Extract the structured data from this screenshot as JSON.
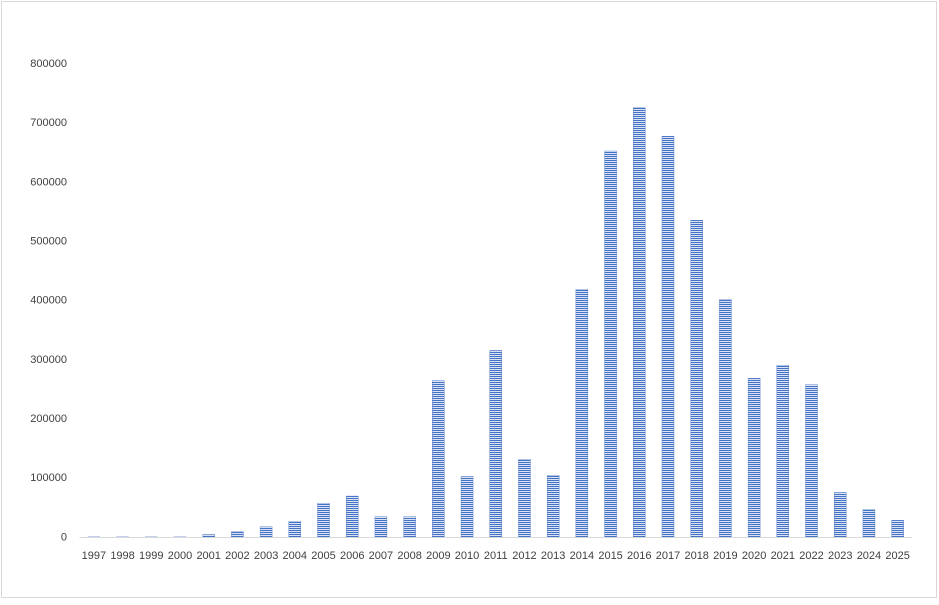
{
  "chart_data": {
    "type": "bar",
    "categories": [
      "1997",
      "1998",
      "1999",
      "2000",
      "2001",
      "2002",
      "2003",
      "2004",
      "2005",
      "2006",
      "2007",
      "2008",
      "2009",
      "2010",
      "2011",
      "2012",
      "2013",
      "2014",
      "2015",
      "2016",
      "2017",
      "2018",
      "2019",
      "2020",
      "2021",
      "2022",
      "2023",
      "2024",
      "2025"
    ],
    "values": [
      1000,
      1000,
      1000,
      1000,
      5000,
      10000,
      18000,
      27000,
      58000,
      70000,
      35000,
      35000,
      265000,
      103000,
      316000,
      132000,
      105000,
      419000,
      653000,
      726000,
      678000,
      536000,
      402000,
      269000,
      291000,
      258000,
      76000,
      47000,
      29000
    ],
    "color": "#4472c4",
    "ylim": [
      0,
      800000
    ],
    "yticks": [
      0,
      100000,
      200000,
      300000,
      400000,
      500000,
      600000,
      700000,
      800000
    ],
    "grid": false
  }
}
